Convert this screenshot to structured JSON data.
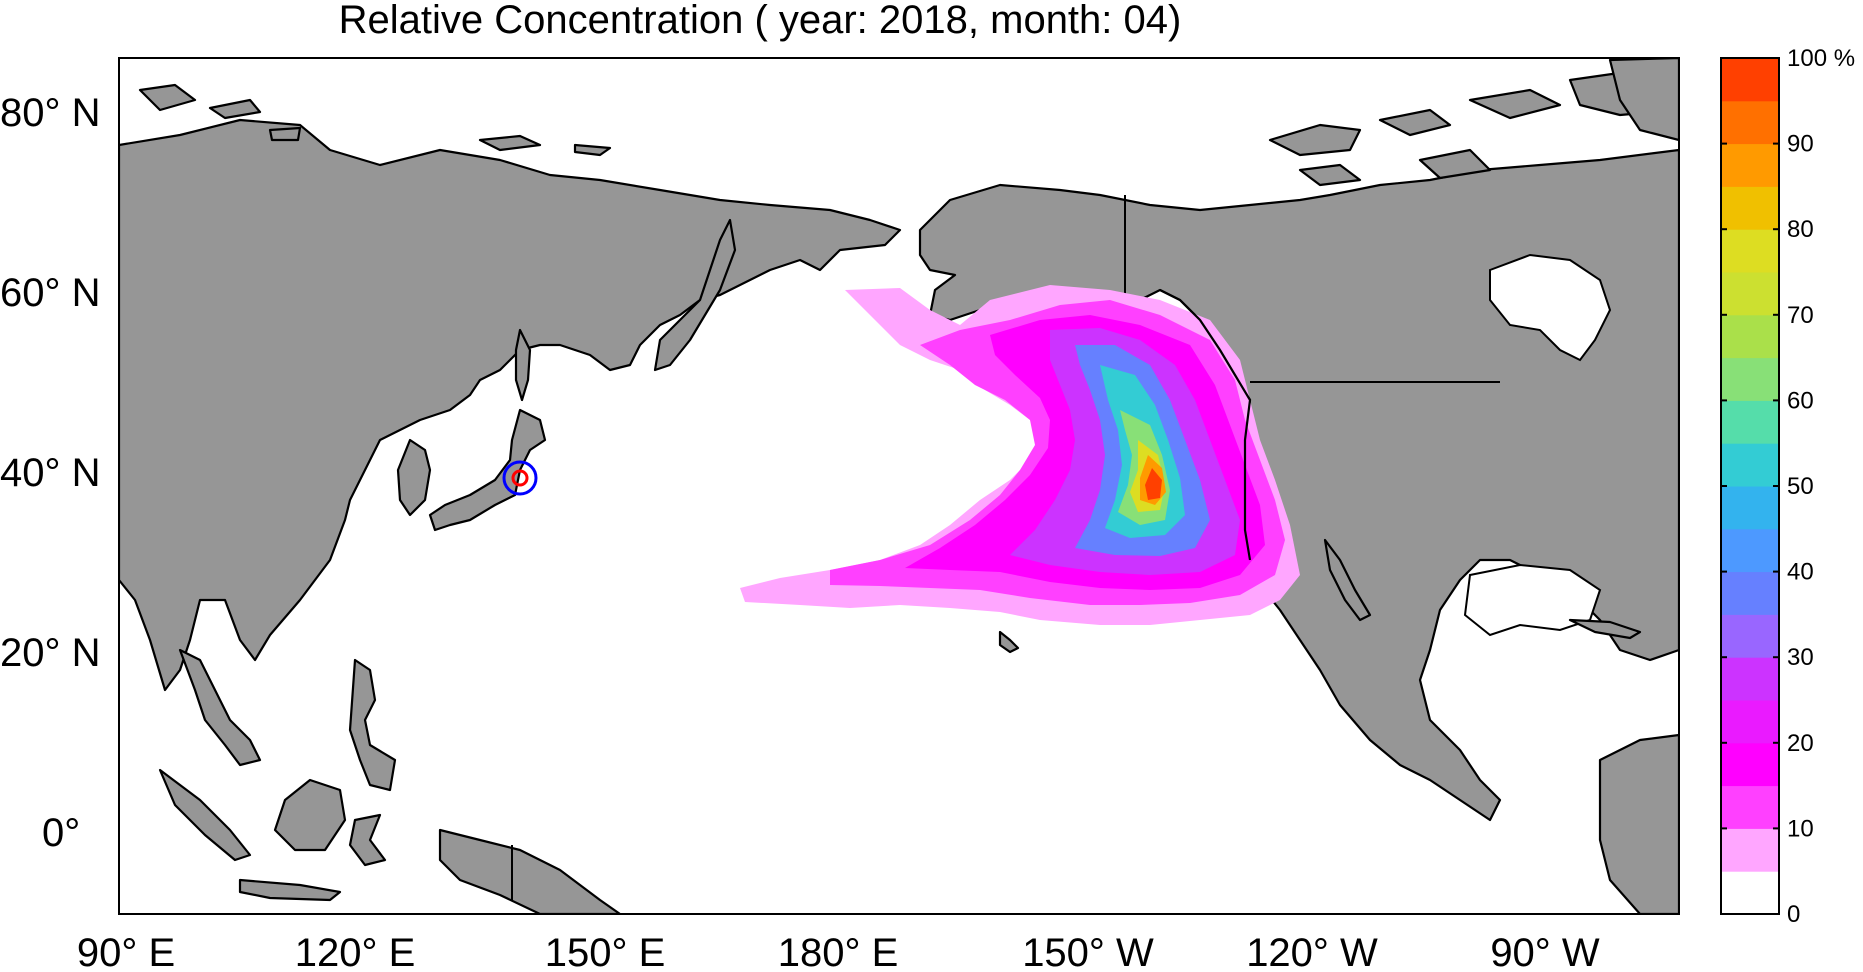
{
  "title": "Relative Concentration ( year: 2018, month: 04)",
  "map": {
    "lon_labels": [
      "90° E",
      "120° E",
      "150° E",
      "180° E",
      "150° W",
      "120° W",
      "90° W"
    ],
    "lat_labels": [
      "80° N",
      "60° N",
      "40° N",
      "20° N",
      "0°"
    ],
    "land_color": "#969696",
    "source_marker": {
      "label_lat_lon": [
        38.4,
        141.5
      ],
      "inner_color": "#ff0000",
      "outer_color": "#0000ff"
    }
  },
  "colorbar": {
    "tick_labels": [
      "100 %",
      "90",
      "80",
      "70",
      "60",
      "50",
      "40",
      "30",
      "20",
      "10",
      "0"
    ],
    "colors": [
      "#ffffff",
      "#ffa6ff",
      "#ff40ff",
      "#ff00ff",
      "#ea1aff",
      "#cc33ff",
      "#9966ff",
      "#6680ff",
      "#4d99ff",
      "#33b3ee",
      "#33ccd4",
      "#55ddaa",
      "#88e077",
      "#aae04a",
      "#cce030",
      "#dddd22",
      "#f0c000",
      "#ff9a00",
      "#ff7000",
      "#ff4000"
    ]
  },
  "chart_data": {
    "type": "heatmap",
    "title": "Relative Concentration ( year: 2018, month: 04)",
    "xlabel": "",
    "ylabel": "",
    "x_ticks": [
      "90° E",
      "120° E",
      "150° E",
      "180° E",
      "150° W",
      "120° W",
      "90° W"
    ],
    "y_ticks": [
      "80° N",
      "60° N",
      "40° N",
      "20° N",
      "0°"
    ],
    "colorbar_range": [
      0,
      100
    ],
    "colorbar_unit": "%",
    "peak_region_lat_lon": [
      36,
      -137
    ]
  }
}
